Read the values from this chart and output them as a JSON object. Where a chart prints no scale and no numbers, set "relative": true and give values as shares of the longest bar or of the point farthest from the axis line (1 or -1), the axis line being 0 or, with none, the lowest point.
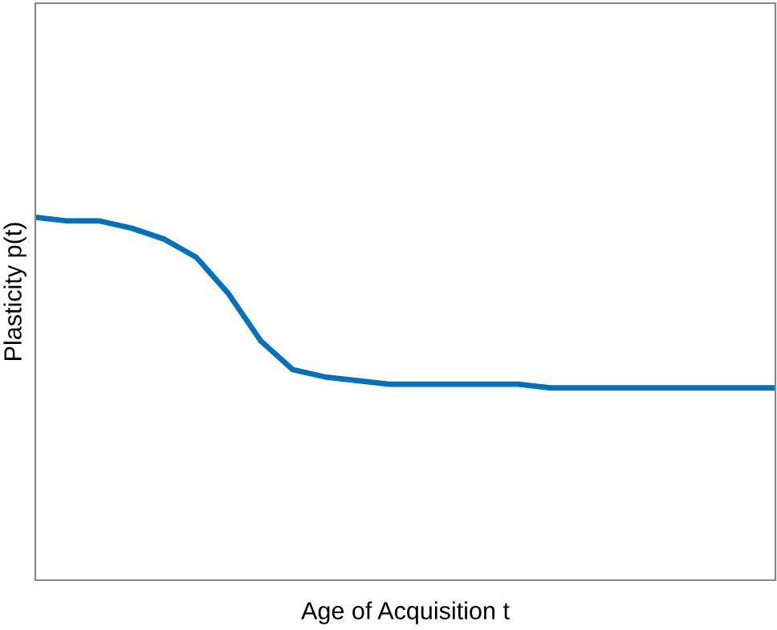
{
  "chart_data": {
    "type": "line",
    "relative": true,
    "xlabel": "Age of Acquisition t",
    "ylabel": "Plasticity p(t)",
    "categories": [
      null,
      null,
      null,
      null,
      null,
      null,
      null,
      null,
      null,
      null,
      null,
      null,
      null,
      null,
      null,
      null,
      null,
      null,
      null,
      null,
      null,
      null,
      null,
      null
    ],
    "series": [
      {
        "color": "#0072bd",
        "values": [
          1.0,
          0.99,
          0.99,
          0.97,
          0.94,
          0.89,
          0.79,
          0.66,
          0.58,
          0.56,
          0.55,
          0.54,
          0.54,
          0.54,
          0.54,
          0.54,
          0.53,
          0.53,
          0.53,
          0.53,
          0.53,
          0.53,
          0.53,
          0.53
        ]
      }
    ],
    "grid": false,
    "marker": "none",
    "line_style": "solid"
  }
}
